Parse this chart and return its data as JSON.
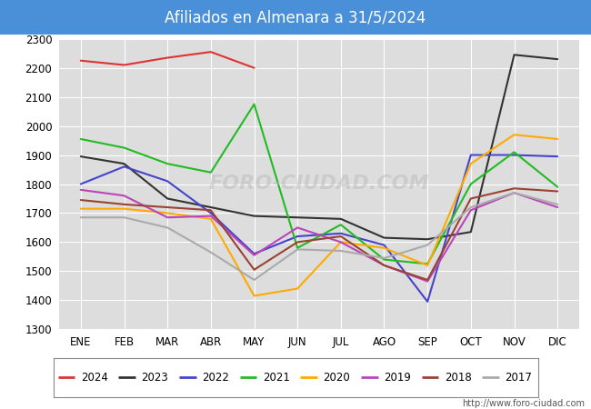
{
  "title": "Afiliados en Almenara a 31/5/2024",
  "title_bg_color": "#4a90d9",
  "title_text_color": "white",
  "months": [
    "ENE",
    "FEB",
    "MAR",
    "ABR",
    "MAY",
    "JUN",
    "JUL",
    "AGO",
    "SEP",
    "OCT",
    "NOV",
    "DIC"
  ],
  "ylim": [
    1300,
    2300
  ],
  "yticks": [
    1300,
    1400,
    1500,
    1600,
    1700,
    1800,
    1900,
    2000,
    2100,
    2200,
    2300
  ],
  "series": {
    "2024": {
      "color": "#dd3333",
      "data": [
        2225,
        2210,
        2235,
        2255,
        2200,
        null,
        null,
        null,
        null,
        null,
        null,
        null
      ]
    },
    "2023": {
      "color": "#333333",
      "data": [
        1895,
        1870,
        1750,
        1720,
        1690,
        1685,
        1680,
        1615,
        1610,
        1635,
        2245,
        2230
      ]
    },
    "2022": {
      "color": "#4444cc",
      "data": [
        1800,
        1860,
        1810,
        1700,
        1560,
        1620,
        1630,
        1590,
        1395,
        1900,
        1900,
        1895
      ]
    },
    "2021": {
      "color": "#22bb22",
      "data": [
        1955,
        1925,
        1870,
        1840,
        2075,
        1580,
        1660,
        1540,
        1525,
        1800,
        1910,
        1790
      ]
    },
    "2020": {
      "color": "#ffaa00",
      "data": [
        1715,
        1715,
        1700,
        1680,
        1415,
        1440,
        1600,
        1580,
        1520,
        1870,
        1970,
        1955
      ]
    },
    "2019": {
      "color": "#bb44bb",
      "data": [
        1780,
        1760,
        1685,
        1690,
        1555,
        1650,
        1600,
        1520,
        1465,
        1710,
        1770,
        1720
      ]
    },
    "2018": {
      "color": "#994433",
      "data": [
        1745,
        1730,
        1720,
        1710,
        1505,
        1600,
        1620,
        1520,
        1470,
        1750,
        1785,
        1775
      ]
    },
    "2017": {
      "color": "#aaaaaa",
      "data": [
        1685,
        1685,
        1650,
        1565,
        1470,
        1575,
        1570,
        1545,
        1590,
        1720,
        1770,
        1730
      ]
    }
  },
  "fig_bg_color": "#ffffff",
  "plot_bg_color": "#dddddd",
  "grid_color": "#ffffff",
  "watermark": "FORO-CIUDAD.COM",
  "url": "http://www.foro-ciudad.com",
  "years_order": [
    "2024",
    "2023",
    "2022",
    "2021",
    "2020",
    "2019",
    "2018",
    "2017"
  ]
}
